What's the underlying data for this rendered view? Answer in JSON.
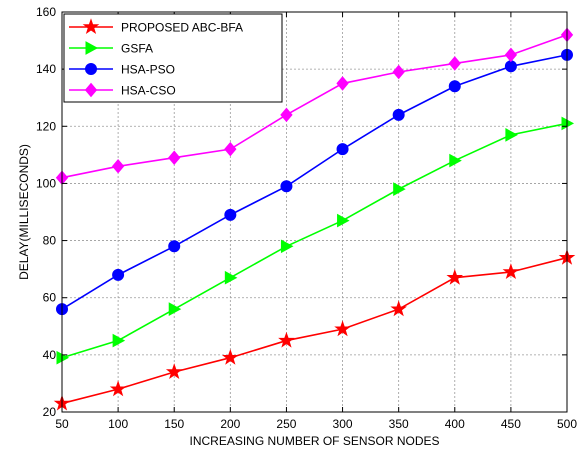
{
  "chart_data": {
    "type": "line",
    "title": "",
    "xlabel": "INCREASING NUMBER OF SENSOR NODES",
    "ylabel": "DELAY(MILLISECONDS)",
    "x": [
      50,
      100,
      150,
      200,
      250,
      300,
      350,
      400,
      450,
      500
    ],
    "xlim": [
      50,
      500
    ],
    "ylim": [
      20,
      160
    ],
    "xticks": [
      "50",
      "100",
      "150",
      "200",
      "250",
      "300",
      "350",
      "400",
      "450",
      "500"
    ],
    "yticks": [
      "20",
      "40",
      "60",
      "80",
      "100",
      "120",
      "140",
      "160"
    ],
    "grid": true,
    "legend_position": "top-left",
    "series": [
      {
        "name": "PROPOSED ABC-BFA",
        "color": "#ff0000",
        "marker": "star",
        "values": [
          23,
          28,
          34,
          39,
          45,
          49,
          56,
          67,
          69,
          74
        ]
      },
      {
        "name": "GSFA",
        "color": "#00ff00",
        "marker": "triangle-right",
        "values": [
          39,
          45,
          56,
          67,
          78,
          87,
          98,
          108,
          117,
          121
        ]
      },
      {
        "name": "HSA-PSO",
        "color": "#0000ff",
        "marker": "circle",
        "values": [
          56,
          68,
          78,
          89,
          99,
          112,
          124,
          134,
          141,
          145
        ]
      },
      {
        "name": "HSA-CSO",
        "color": "#ff00ff",
        "marker": "diamond",
        "values": [
          102,
          106,
          109,
          112,
          124,
          135,
          139,
          142,
          145,
          152
        ]
      }
    ]
  }
}
